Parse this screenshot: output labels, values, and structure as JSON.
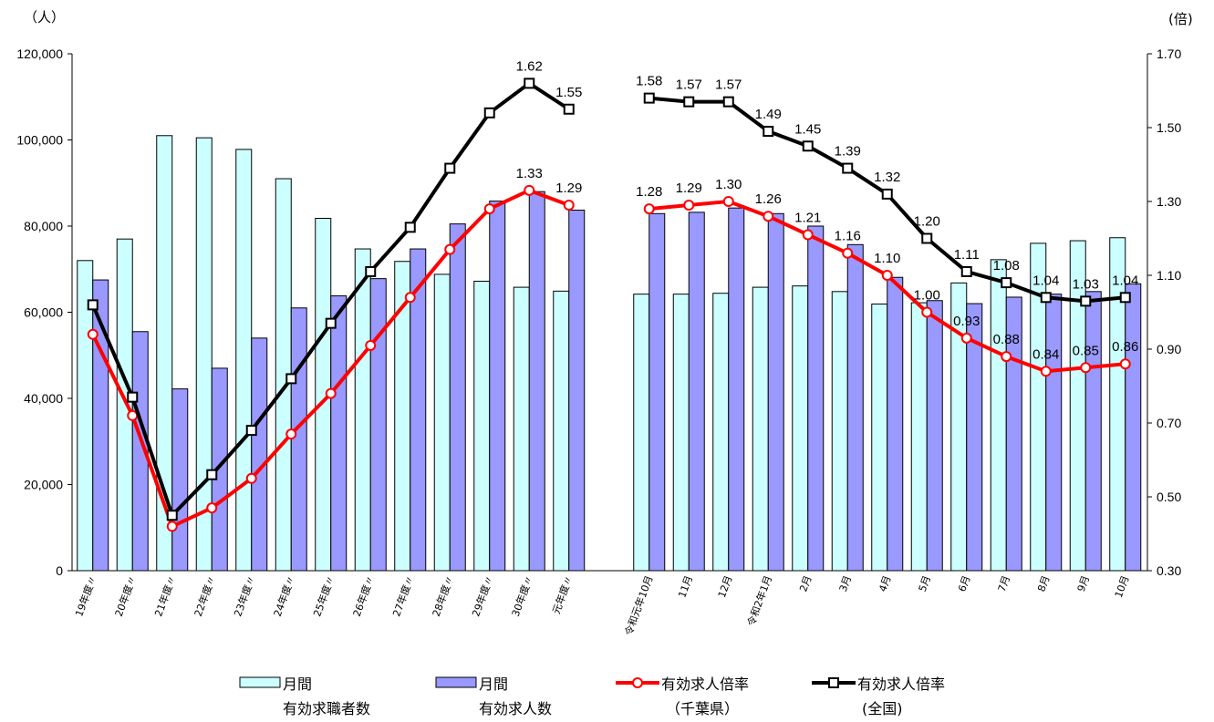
{
  "chart_data": {
    "type": "bar",
    "left_axis_unit": "（人）",
    "right_axis_unit": "(倍)",
    "y_left": {
      "min": 0,
      "max": 120000,
      "ticks": [
        "0",
        "20,000",
        "40,000",
        "60,000",
        "80,000",
        "100,000",
        "120,000"
      ]
    },
    "y_right": {
      "min": 0.3,
      "max": 1.7,
      "ticks": [
        "0.30",
        "0.50",
        "0.70",
        "0.90",
        "1.10",
        "1.30",
        "1.50",
        "1.70"
      ]
    },
    "groups": [
      {
        "categories": [
          "19年度〃",
          "20年度〃",
          "21年度〃",
          "22年度〃",
          "23年度〃",
          "24年度〃",
          "25年度〃",
          "26年度〃",
          "27年度〃",
          "28年度〃",
          "29年度〃",
          "30年度〃",
          "元年度〃"
        ]
      },
      {
        "categories": [
          "令和元年10月",
          "11月",
          "12月",
          "令和2年1月",
          "2月",
          "3月",
          "4月",
          "5月",
          "6月",
          "7月",
          "8月",
          "9月",
          "10月"
        ]
      }
    ],
    "series": [
      {
        "name": "月間\n有効求職者数",
        "kind": "bar",
        "axis": "left",
        "color": "#ccffff",
        "values": [
          72000,
          77000,
          101000,
          100500,
          97800,
          91000,
          81800,
          74700,
          71800,
          68800,
          67200,
          65800,
          64900,
          64200,
          64200,
          64400,
          65800,
          66100,
          64800,
          61900,
          62200,
          66800,
          72200,
          76000,
          76600,
          77300
        ]
      },
      {
        "name": "月間\n有効求人数",
        "kind": "bar",
        "axis": "left",
        "color": "#9999ff",
        "values": [
          67500,
          55500,
          42200,
          47000,
          54000,
          61000,
          63800,
          67800,
          74700,
          80500,
          85800,
          88000,
          83700,
          82900,
          83200,
          84200,
          82900,
          80000,
          75700,
          68100,
          62700,
          62000,
          63500,
          64200,
          64800,
          66600
        ]
      },
      {
        "name": "有効求人倍率\n（千葉県）",
        "kind": "line",
        "axis": "right",
        "color": "#ff0000",
        "values": [
          0.94,
          0.72,
          0.42,
          0.47,
          0.55,
          0.67,
          0.78,
          0.91,
          1.04,
          1.17,
          1.28,
          1.33,
          1.29,
          1.28,
          1.29,
          1.3,
          1.26,
          1.21,
          1.16,
          1.1,
          1.0,
          0.93,
          0.88,
          0.84,
          0.85,
          0.86
        ],
        "labels": [
          "",
          "",
          "",
          "",
          "",
          "",
          "",
          "",
          "",
          "",
          "",
          "1.33",
          "1.29",
          "1.28",
          "1.29",
          "1.30",
          "1.26",
          "1.21",
          "1.16",
          "1.10",
          "1.00",
          "0.93",
          "0.88",
          "0.84",
          "0.85",
          "0.86"
        ]
      },
      {
        "name": "有効求人倍率\n(全国)",
        "kind": "line",
        "axis": "right",
        "color": "#000000",
        "values": [
          1.02,
          0.77,
          0.45,
          0.56,
          0.68,
          0.82,
          0.97,
          1.11,
          1.23,
          1.39,
          1.54,
          1.62,
          1.55,
          1.58,
          1.57,
          1.57,
          1.49,
          1.45,
          1.39,
          1.32,
          1.2,
          1.11,
          1.08,
          1.04,
          1.03,
          1.04
        ],
        "labels": [
          "",
          "",
          "",
          "",
          "",
          "",
          "",
          "",
          "",
          "",
          "",
          "1.62",
          "1.55",
          "1.58",
          "1.57",
          "1.57",
          "1.49",
          "1.45",
          "1.39",
          "1.32",
          "1.20",
          "1.11",
          "1.08",
          "1.04",
          "1.03",
          "1.04"
        ]
      }
    ],
    "legend_position": "bottom",
    "grid": false
  }
}
